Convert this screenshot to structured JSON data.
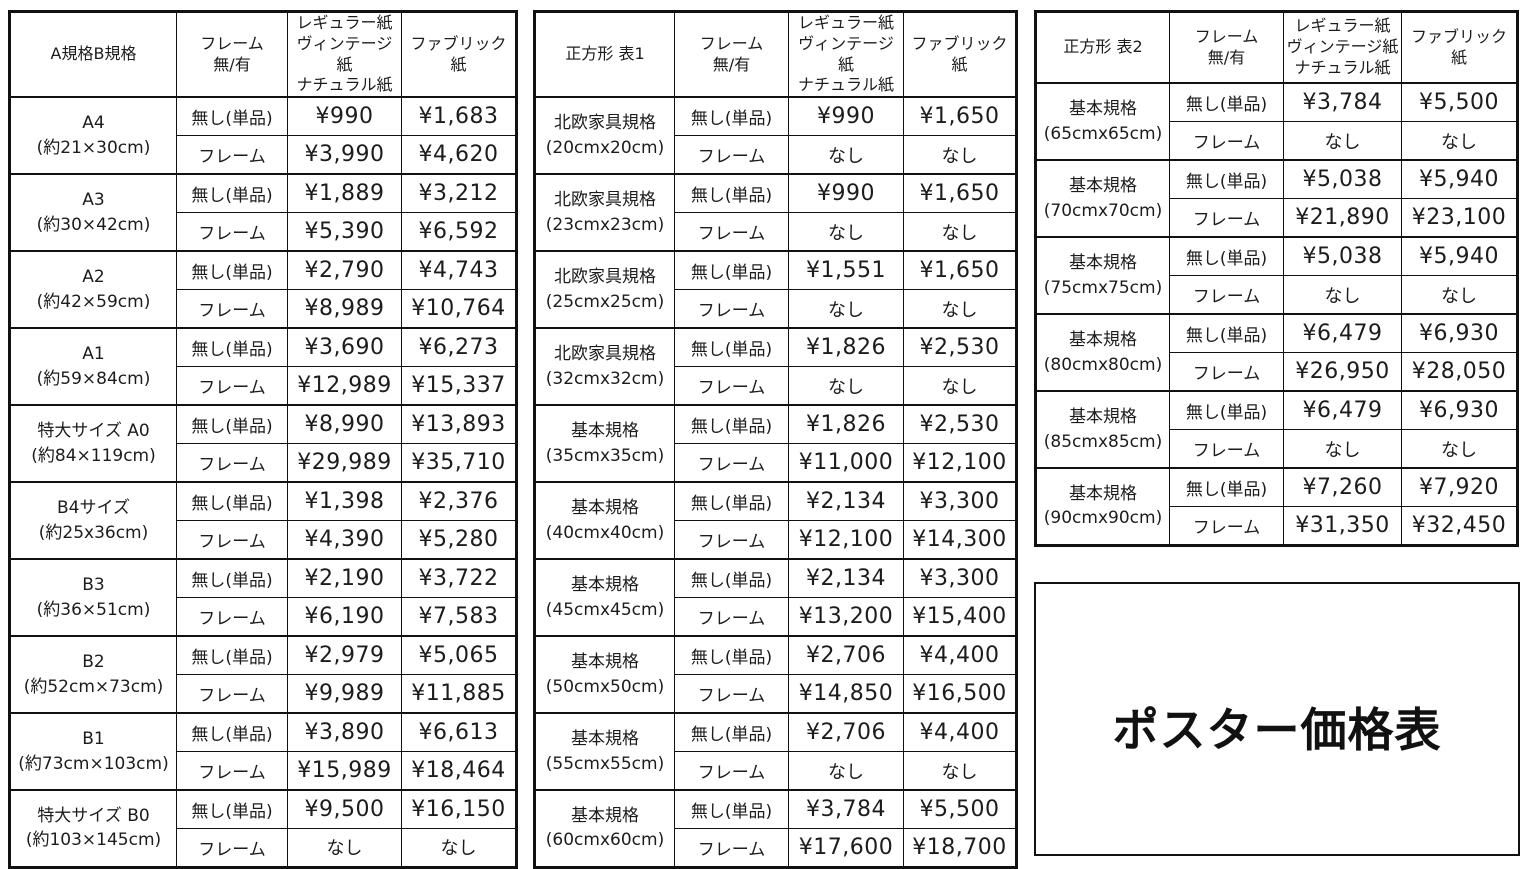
{
  "page_title": "ポスター価格表",
  "colors": {
    "background": "#ffffff",
    "border": "#111111",
    "text": "#1c1c1c",
    "unavailable_cell_gray": "#b2b2b2"
  },
  "row_labels": {
    "no_frame": "無し(単品)",
    "frame": "フレーム",
    "unavailable": "なし"
  },
  "column_headers": {
    "frame": "フレーム\n無/有",
    "regular": "レギュラー紙\nヴィンテージ紙\nナチュラル紙",
    "fabric": "ファブリック紙"
  },
  "tables": [
    {
      "title": "A規格B規格",
      "rows": [
        {
          "size": "A4",
          "dims": "(約21×30cm)",
          "no_frame": {
            "regular": "¥990",
            "fabric": "¥1,683"
          },
          "frame": {
            "regular": "¥3,990",
            "fabric": "¥4,620",
            "gray_cells": false,
            "gray_label": false
          }
        },
        {
          "size": "A3",
          "dims": "(約30×42cm)",
          "no_frame": {
            "regular": "¥1,889",
            "fabric": "¥3,212"
          },
          "frame": {
            "regular": "¥5,390",
            "fabric": "¥6,592",
            "gray_cells": false,
            "gray_label": false
          }
        },
        {
          "size": "A2",
          "dims": "(約42×59cm)",
          "no_frame": {
            "regular": "¥2,790",
            "fabric": "¥4,743"
          },
          "frame": {
            "regular": "¥8,989",
            "fabric": "¥10,764",
            "gray_cells": false,
            "gray_label": false
          }
        },
        {
          "size": "A1",
          "dims": "(約59×84cm)",
          "no_frame": {
            "regular": "¥3,690",
            "fabric": "¥6,273"
          },
          "frame": {
            "regular": "¥12,989",
            "fabric": "¥15,337",
            "gray_cells": false,
            "gray_label": false
          }
        },
        {
          "size": "特大サイズ A0",
          "dims": "(約84×119cm)",
          "no_frame": {
            "regular": "¥8,990",
            "fabric": "¥13,893"
          },
          "frame": {
            "regular": "¥29,989",
            "fabric": "¥35,710",
            "gray_cells": false,
            "gray_label": false
          }
        },
        {
          "size": "B4サイズ",
          "dims": "(約25x36cm)",
          "no_frame": {
            "regular": "¥1,398",
            "fabric": "¥2,376"
          },
          "frame": {
            "regular": "¥4,390",
            "fabric": "¥5,280",
            "gray_cells": false,
            "gray_label": false
          }
        },
        {
          "size": "B3",
          "dims": "(約36×51cm)",
          "no_frame": {
            "regular": "¥2,190",
            "fabric": "¥3,722"
          },
          "frame": {
            "regular": "¥6,190",
            "fabric": "¥7,583",
            "gray_cells": false,
            "gray_label": false
          }
        },
        {
          "size": "B2",
          "dims": "(約52cm×73cm)",
          "no_frame": {
            "regular": "¥2,979",
            "fabric": "¥5,065"
          },
          "frame": {
            "regular": "¥9,989",
            "fabric": "¥11,885",
            "gray_cells": false,
            "gray_label": false
          }
        },
        {
          "size": "B1",
          "dims": "(約73cm×103cm)",
          "no_frame": {
            "regular": "¥3,890",
            "fabric": "¥6,613"
          },
          "frame": {
            "regular": "¥15,989",
            "fabric": "¥18,464",
            "gray_cells": false,
            "gray_label": false
          }
        },
        {
          "size": "特大サイズ B0",
          "dims": "(約103×145cm)",
          "no_frame": {
            "regular": "¥9,500",
            "fabric": "¥16,150"
          },
          "frame": {
            "regular": "なし",
            "fabric": "なし",
            "gray_cells": true,
            "gray_label": false
          }
        }
      ]
    },
    {
      "title": "正方形 表1",
      "rows": [
        {
          "size": "北欧家具規格",
          "dims": "(20cmx20cm)",
          "no_frame": {
            "regular": "¥990",
            "fabric": "¥1,650"
          },
          "frame": {
            "regular": "なし",
            "fabric": "なし",
            "gray_cells": true,
            "gray_label": true
          }
        },
        {
          "size": "北欧家具規格",
          "dims": "(23cmx23cm)",
          "no_frame": {
            "regular": "¥990",
            "fabric": "¥1,650"
          },
          "frame": {
            "regular": "なし",
            "fabric": "なし",
            "gray_cells": true,
            "gray_label": true
          }
        },
        {
          "size": "北欧家具規格",
          "dims": "(25cmx25cm)",
          "no_frame": {
            "regular": "¥1,551",
            "fabric": "¥1,650"
          },
          "frame": {
            "regular": "なし",
            "fabric": "なし",
            "gray_cells": true,
            "gray_label": true
          }
        },
        {
          "size": "北欧家具規格",
          "dims": "(32cmx32cm)",
          "no_frame": {
            "regular": "¥1,826",
            "fabric": "¥2,530"
          },
          "frame": {
            "regular": "なし",
            "fabric": "なし",
            "gray_cells": true,
            "gray_label": true
          }
        },
        {
          "size": "基本規格",
          "dims": "(35cmx35cm)",
          "no_frame": {
            "regular": "¥1,826",
            "fabric": "¥2,530"
          },
          "frame": {
            "regular": "¥11,000",
            "fabric": "¥12,100",
            "gray_cells": false,
            "gray_label": false
          }
        },
        {
          "size": "基本規格",
          "dims": "(40cmx40cm)",
          "no_frame": {
            "regular": "¥2,134",
            "fabric": "¥3,300"
          },
          "frame": {
            "regular": "¥12,100",
            "fabric": "¥14,300",
            "gray_cells": false,
            "gray_label": false
          }
        },
        {
          "size": "基本規格",
          "dims": "(45cmx45cm)",
          "no_frame": {
            "regular": "¥2,134",
            "fabric": "¥3,300"
          },
          "frame": {
            "regular": "¥13,200",
            "fabric": "¥15,400",
            "gray_cells": false,
            "gray_label": false
          }
        },
        {
          "size": "基本規格",
          "dims": "(50cmx50cm)",
          "no_frame": {
            "regular": "¥2,706",
            "fabric": "¥4,400"
          },
          "frame": {
            "regular": "¥14,850",
            "fabric": "¥16,500",
            "gray_cells": false,
            "gray_label": false
          }
        },
        {
          "size": "基本規格",
          "dims": "(55cmx55cm)",
          "no_frame": {
            "regular": "¥2,706",
            "fabric": "¥4,400"
          },
          "frame": {
            "regular": "なし",
            "fabric": "なし",
            "gray_cells": true,
            "gray_label": true
          }
        },
        {
          "size": "基本規格",
          "dims": "(60cmx60cm)",
          "no_frame": {
            "regular": "¥3,784",
            "fabric": "¥5,500"
          },
          "frame": {
            "regular": "¥17,600",
            "fabric": "¥18,700",
            "gray_cells": false,
            "gray_label": false
          }
        }
      ]
    },
    {
      "title": "正方形 表2",
      "rows": [
        {
          "size": "基本規格",
          "dims": "(65cmx65cm)",
          "no_frame": {
            "regular": "¥3,784",
            "fabric": "¥5,500"
          },
          "frame": {
            "regular": "なし",
            "fabric": "なし",
            "gray_cells": true,
            "gray_label": true
          }
        },
        {
          "size": "基本規格",
          "dims": "(70cmx70cm)",
          "no_frame": {
            "regular": "¥5,038",
            "fabric": "¥5,940"
          },
          "frame": {
            "regular": "¥21,890",
            "fabric": "¥23,100",
            "gray_cells": false,
            "gray_label": false
          }
        },
        {
          "size": "基本規格",
          "dims": "(75cmx75cm)",
          "no_frame": {
            "regular": "¥5,038",
            "fabric": "¥5,940"
          },
          "frame": {
            "regular": "なし",
            "fabric": "なし",
            "gray_cells": true,
            "gray_label": true
          }
        },
        {
          "size": "基本規格",
          "dims": "(80cmx80cm)",
          "no_frame": {
            "regular": "¥6,479",
            "fabric": "¥6,930"
          },
          "frame": {
            "regular": "¥26,950",
            "fabric": "¥28,050",
            "gray_cells": false,
            "gray_label": false
          }
        },
        {
          "size": "基本規格",
          "dims": "(85cmx85cm)",
          "no_frame": {
            "regular": "¥6,479",
            "fabric": "¥6,930"
          },
          "frame": {
            "regular": "なし",
            "fabric": "なし",
            "gray_cells": true,
            "gray_label": true
          }
        },
        {
          "size": "基本規格",
          "dims": "(90cmx90cm)",
          "no_frame": {
            "regular": "¥7,260",
            "fabric": "¥7,920"
          },
          "frame": {
            "regular": "¥31,350",
            "fabric": "¥32,450",
            "gray_cells": false,
            "gray_label": false
          }
        }
      ]
    }
  ]
}
